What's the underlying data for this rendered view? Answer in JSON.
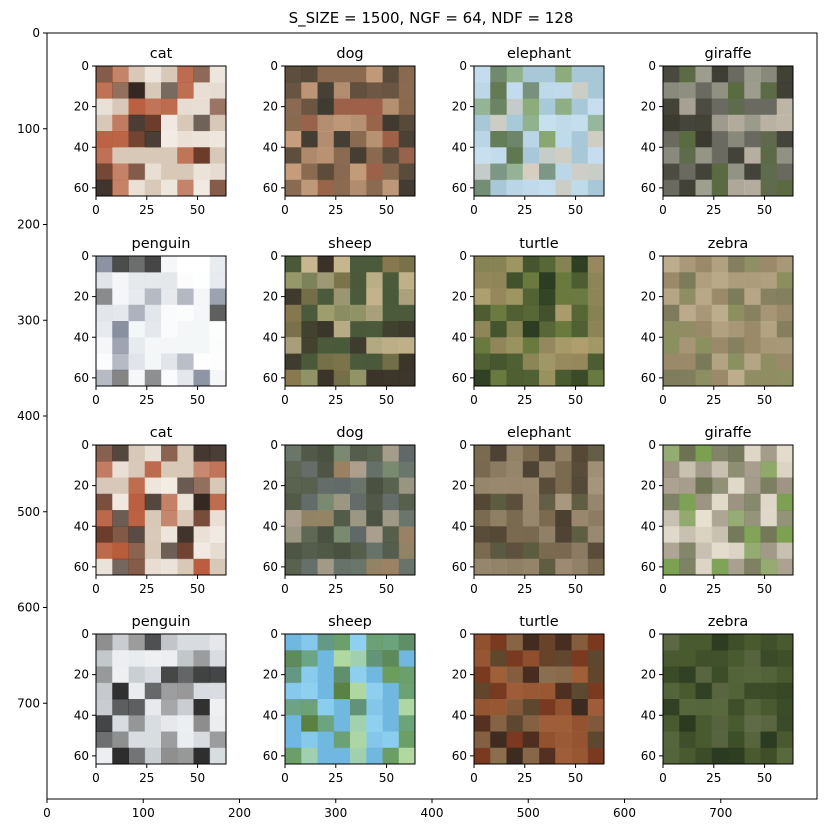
{
  "chart_data": {
    "type": "image-grid",
    "title": "S_SIZE = 1500, NGF = 64, NDF = 128",
    "outer_axes": {
      "xlim": [
        0,
        800
      ],
      "ylim": [
        800,
        0
      ],
      "xticks": [
        0,
        100,
        200,
        300,
        400,
        500,
        600,
        700
      ],
      "yticks": [
        0,
        100,
        200,
        300,
        400,
        500,
        600,
        700
      ]
    },
    "panel_axes": {
      "xticks": [
        0,
        25,
        50
      ],
      "yticks": [
        0,
        20,
        40,
        60
      ],
      "xlim": [
        0,
        64
      ],
      "ylim": [
        64,
        0
      ]
    },
    "panels": [
      {
        "title": "cat",
        "palette": [
          "#d8c8b8",
          "#6a3a28",
          "#2a1e18",
          "#b85a3a",
          "#f2ece4"
        ]
      },
      {
        "title": "dog",
        "palette": [
          "#8a6a50",
          "#5a4a3a",
          "#a06048",
          "#3e3a30",
          "#c8a080"
        ]
      },
      {
        "title": "elephant",
        "palette": [
          "#a8c8d8",
          "#88a870",
          "#d8d0c0",
          "#607850",
          "#c8e0f0"
        ]
      },
      {
        "title": "giraffe",
        "palette": [
          "#6a6a60",
          "#3a3a30",
          "#a0a090",
          "#5a6a40",
          "#c8c0b0"
        ]
      },
      {
        "title": "penguin",
        "palette": [
          "#f4f6f8",
          "#e0e4e8",
          "#3a3a3a",
          "#8890a0",
          "#ffffff"
        ]
      },
      {
        "title": "sheep",
        "palette": [
          "#4a5a3a",
          "#8a7a50",
          "#c8b890",
          "#3a3028",
          "#a0a070"
        ]
      },
      {
        "title": "turtle",
        "palette": [
          "#6a7a40",
          "#4a5a30",
          "#9a8a60",
          "#2a3a20",
          "#b0a070"
        ]
      },
      {
        "title": "zebra",
        "palette": [
          "#9a8a6a",
          "#7a7a5a",
          "#b0a080",
          "#8a9060",
          "#c0b090"
        ]
      },
      {
        "title": "cat",
        "palette": [
          "#d8c8b8",
          "#6a3a28",
          "#2a1e18",
          "#b85a3a",
          "#f2ece4"
        ]
      },
      {
        "title": "dog",
        "palette": [
          "#7a8a70",
          "#4a5040",
          "#a08060",
          "#606868",
          "#b0a090"
        ]
      },
      {
        "title": "elephant",
        "palette": [
          "#7a6a50",
          "#4a4030",
          "#9a8a70",
          "#5a5a40",
          "#a89880"
        ]
      },
      {
        "title": "giraffe",
        "palette": [
          "#c8c0b0",
          "#6a7050",
          "#7aa050",
          "#9a9080",
          "#e8e0d0"
        ]
      },
      {
        "title": "penguin",
        "palette": [
          "#d8dce0",
          "#c0c4c8",
          "#2a2a2a",
          "#8a8a8a",
          "#eef0f2"
        ]
      },
      {
        "title": "sheep",
        "palette": [
          "#70b8e0",
          "#90d0f0",
          "#6a9a50",
          "#b0d8a0",
          "#5a8040"
        ]
      },
      {
        "title": "turtle",
        "palette": [
          "#7a3a20",
          "#5a4a30",
          "#a0603a",
          "#3a2a20",
          "#8a7050"
        ]
      },
      {
        "title": "zebra",
        "palette": [
          "#4a5a30",
          "#3a4a28",
          "#5a6a40",
          "#2a3a20",
          "#606a48"
        ]
      }
    ]
  }
}
